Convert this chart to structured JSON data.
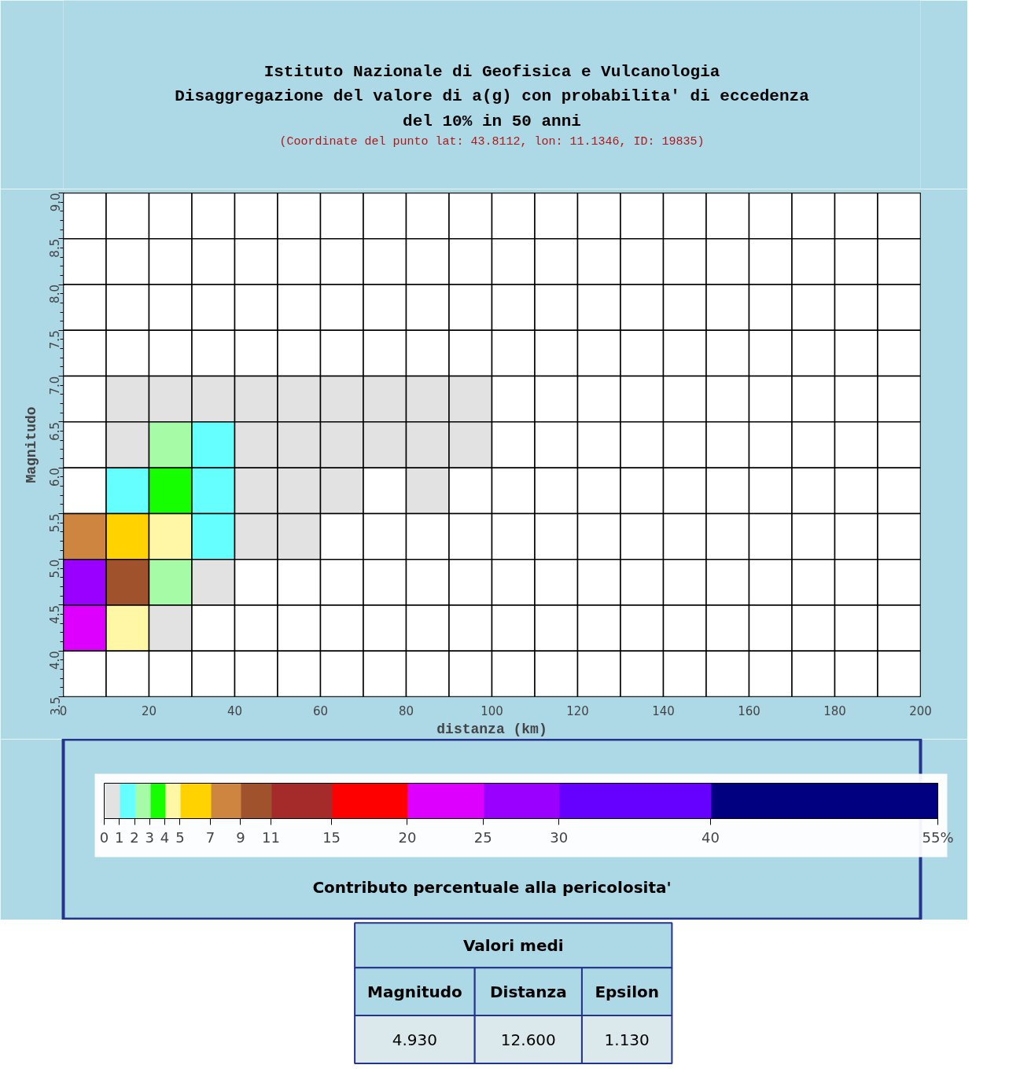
{
  "chart_data": {
    "type": "heatmap",
    "title": "Istituto Nazionale di Geofisica e Vulcanologia\nDisaggregazione del valore di a(g) con probabilita' di eccedenza\ndel 10% in 50 anni",
    "subtitle": "(Coordinate del punto lat: 43.8112, lon: 11.1346, ID: 19835)",
    "xlabel": "distanza (km)",
    "ylabel": "Magnitudo",
    "clabel": "Contributo percentuale alla pericolosita'",
    "xlim": [
      0,
      200
    ],
    "ylim": [
      3.5,
      9.0
    ],
    "xticks": [
      0,
      20,
      40,
      60,
      80,
      100,
      120,
      140,
      160,
      180,
      200
    ],
    "yticks": [
      {
        "value": 3.5,
        "label": "3.5"
      },
      {
        "value": 4.0,
        "label": "4.0"
      },
      {
        "value": 4.5,
        "label": "4.5"
      },
      {
        "value": 5.0,
        "label": "5.0"
      },
      {
        "value": 5.5,
        "label": "5.5"
      },
      {
        "value": 6.0,
        "label": "6.0"
      },
      {
        "value": 6.5,
        "label": "6.5"
      },
      {
        "value": 7.0,
        "label": "7.0"
      },
      {
        "value": 7.5,
        "label": "7.5"
      },
      {
        "value": 8.0,
        "label": "8.0"
      },
      {
        "value": 8.5,
        "label": "8.5"
      },
      {
        "value": 9.0,
        "label": "9.0"
      }
    ],
    "clim": [
      0,
      55
    ],
    "cticks": [
      0,
      1,
      2,
      3,
      4,
      5,
      7,
      9,
      11,
      15,
      20,
      25,
      30,
      40,
      {
        "value": 55,
        "label": "55%"
      }
    ],
    "colors": [
      "#ffffff",
      "#e2e2e2",
      "#66ffff",
      "#a6fba6",
      "#16ff00",
      "#fff7a6",
      "#ffd200",
      "#cd853f",
      "#a0522d",
      "#a52a2a",
      "#ff0000",
      "#dd00ff",
      "#9900ff",
      "#6600ff",
      "#000080"
    ],
    "cells": [
      [
        0,
        0,
        0,
        0,
        0,
        0,
        0,
        0,
        0,
        0,
        0,
        0,
        0,
        0,
        0,
        0,
        0,
        0,
        0,
        0
      ],
      [
        0,
        0,
        0,
        0,
        0,
        0,
        0,
        0,
        0,
        0,
        0,
        0,
        0,
        0,
        0,
        0,
        0,
        0,
        0,
        0
      ],
      [
        0,
        0,
        0,
        0,
        0,
        0,
        0,
        0,
        0,
        0,
        0,
        0,
        0,
        0,
        0,
        0,
        0,
        0,
        0,
        0
      ],
      [
        0,
        0,
        0,
        0,
        0,
        0,
        0,
        0,
        0,
        0,
        0,
        0,
        0,
        0,
        0,
        0,
        0,
        0,
        0,
        0
      ],
      [
        0,
        0.5,
        0.5,
        0.5,
        0.5,
        0.5,
        0.5,
        0.5,
        0.5,
        0.5,
        0,
        0,
        0,
        0,
        0,
        0,
        0,
        0,
        0,
        0
      ],
      [
        0,
        0.5,
        2.5,
        1.5,
        0.5,
        0.5,
        0.5,
        0.5,
        0.5,
        0.5,
        0,
        0,
        0,
        0,
        0,
        0,
        0,
        0,
        0,
        0
      ],
      [
        0,
        1.5,
        3.5,
        1.5,
        0.5,
        0.5,
        0.5,
        0,
        0.5,
        0,
        0,
        0,
        0,
        0,
        0,
        0,
        0,
        0,
        0,
        0
      ],
      [
        8,
        6,
        4.5,
        1.5,
        0.5,
        0.5,
        0,
        0,
        0,
        0,
        0,
        0,
        0,
        0,
        0,
        0,
        0,
        0,
        0,
        0
      ],
      [
        27.5,
        10,
        2.5,
        0.5,
        0,
        0,
        0,
        0,
        0,
        0,
        0,
        0,
        0,
        0,
        0,
        0,
        0,
        0,
        0,
        0
      ],
      [
        22.5,
        4.5,
        0.5,
        0,
        0,
        0,
        0,
        0,
        0,
        0,
        0,
        0,
        0,
        0,
        0,
        0,
        0,
        0,
        0,
        0
      ],
      [
        0,
        0,
        0,
        0,
        0,
        0,
        0,
        0,
        0,
        0,
        0,
        0,
        0,
        0,
        0,
        0,
        0,
        0,
        0,
        0
      ]
    ],
    "annotations": [
      "Valori medi",
      "Magnitudo",
      "Distanza",
      "Epsilon",
      "4.930",
      "12.600",
      "1.130"
    ]
  }
}
